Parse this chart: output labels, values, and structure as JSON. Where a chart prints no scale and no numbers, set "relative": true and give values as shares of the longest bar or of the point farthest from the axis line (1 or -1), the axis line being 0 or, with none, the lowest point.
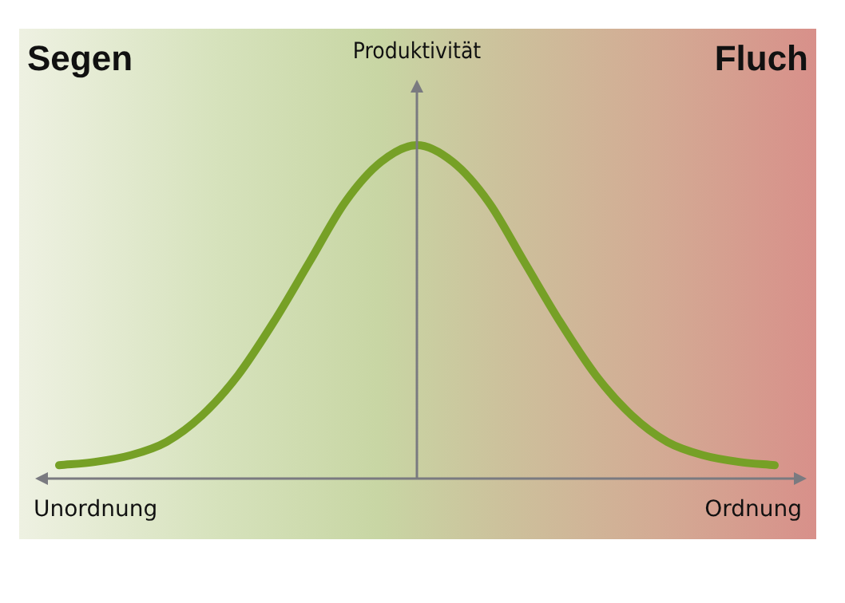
{
  "chart_data": {
    "type": "line",
    "relative": true,
    "ylabel": "Produktivität",
    "annotations": [
      "Segen",
      "Fluch",
      "Unordnung",
      "Ordnung"
    ],
    "categories": [
      null,
      null,
      null,
      null,
      null,
      null,
      null,
      null,
      null,
      null,
      null,
      null,
      null,
      null,
      null,
      null,
      null,
      null,
      null,
      null,
      null
    ],
    "series": [
      {
        "color": "#76a026",
        "values": [
          0.04,
          0.05,
          0.07,
          0.11,
          0.19,
          0.31,
          0.47,
          0.65,
          0.83,
          0.95,
          1,
          0.95,
          0.83,
          0.65,
          0.47,
          0.31,
          0.19,
          0.11,
          0.07,
          0.05,
          0.04
        ]
      }
    ],
    "marker": "none",
    "line_style": "solid"
  }
}
